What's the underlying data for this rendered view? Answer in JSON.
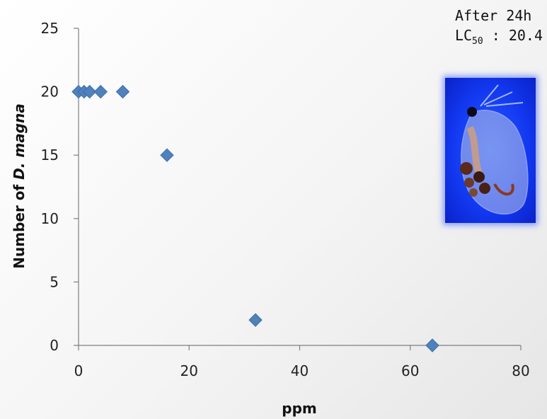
{
  "annotation": {
    "line1": "After 24h",
    "lc_prefix": "LC",
    "lc_sub": "50",
    "lc_value": " : 20.4"
  },
  "image": {
    "icon": "daphnia-magna-photo"
  },
  "chart_data": {
    "type": "scatter",
    "xlabel": "ppm",
    "ylabel_prefix": "Number of ",
    "ylabel_italic": "D. magna",
    "xlim": [
      0,
      80
    ],
    "ylim": [
      0,
      25
    ],
    "xticks": [
      0,
      20,
      40,
      60,
      80
    ],
    "yticks": [
      0,
      5,
      10,
      15,
      20,
      25
    ],
    "marker": "diamond",
    "color": "#4f81bd",
    "points": [
      {
        "x": 0,
        "y": 20
      },
      {
        "x": 1,
        "y": 20
      },
      {
        "x": 2,
        "y": 20
      },
      {
        "x": 4,
        "y": 20
      },
      {
        "x": 8,
        "y": 20
      },
      {
        "x": 16,
        "y": 15
      },
      {
        "x": 32,
        "y": 2
      },
      {
        "x": 64,
        "y": 0
      }
    ],
    "grid": false
  }
}
